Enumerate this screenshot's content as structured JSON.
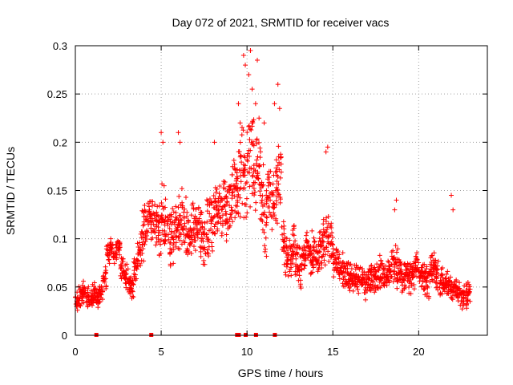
{
  "chart_data": {
    "type": "scatter",
    "title": "Day 072 of 2021, SRMTID for receiver vacs",
    "xlabel": "GPS time / hours",
    "ylabel": "SRMTID / TECUs",
    "xlim": [
      0,
      24
    ],
    "ylim": [
      0,
      0.3
    ],
    "x_ticks": [
      0,
      5,
      10,
      15,
      20
    ],
    "y_ticks": [
      0,
      0.05,
      0.1,
      0.15,
      0.2,
      0.25,
      0.3
    ],
    "x_tick_labels": [
      "0",
      "5",
      "10",
      "15",
      "20"
    ],
    "y_tick_labels": [
      "0",
      "0.05",
      "0.1",
      "0.15",
      "0.2",
      "0.25",
      "0.3"
    ],
    "grid": true,
    "marker": "+",
    "color": "#ff0000",
    "series": [
      {
        "name": "SRMTID",
        "x": [
          0.0,
          0.2,
          0.4,
          0.6,
          0.8,
          1.0,
          1.2,
          1.4,
          1.6,
          1.8,
          2.0,
          2.2,
          2.4,
          2.6,
          2.8,
          3.0,
          3.2,
          3.4,
          3.6,
          3.8,
          4.0,
          4.2,
          4.4,
          4.6,
          4.8,
          5.0,
          5.2,
          5.4,
          5.6,
          5.8,
          6.0,
          6.2,
          6.4,
          6.6,
          6.8,
          7.0,
          7.2,
          7.4,
          7.6,
          7.8,
          8.0,
          8.2,
          8.4,
          8.6,
          8.8,
          9.0,
          9.2,
          9.4,
          9.6,
          9.8,
          10.0,
          10.2,
          10.4,
          10.6,
          10.8,
          11.0,
          11.2,
          11.4,
          11.6,
          11.8,
          12.0,
          12.2,
          12.4,
          12.6,
          12.8,
          13.0,
          13.2,
          13.4,
          13.6,
          13.8,
          14.0,
          14.2,
          14.4,
          14.6,
          14.8,
          15.0,
          15.2,
          15.4,
          15.6,
          15.8,
          16.0,
          16.2,
          16.4,
          16.6,
          16.8,
          17.0,
          17.2,
          17.4,
          17.6,
          17.8,
          18.0,
          18.2,
          18.4,
          18.6,
          18.8,
          19.0,
          19.2,
          19.4,
          19.6,
          19.8,
          20.0,
          20.2,
          20.4,
          20.6,
          20.8,
          21.0,
          21.2,
          21.4,
          21.6,
          21.8,
          22.0,
          22.2,
          22.4,
          22.6,
          22.8
        ],
        "y": [
          0.035,
          0.04,
          0.045,
          0.04,
          0.035,
          0.045,
          0.04,
          0.045,
          0.06,
          0.085,
          0.09,
          0.085,
          0.09,
          0.07,
          0.06,
          0.055,
          0.05,
          0.07,
          0.085,
          0.1,
          0.12,
          0.13,
          0.12,
          0.115,
          0.11,
          0.12,
          0.115,
          0.1,
          0.105,
          0.11,
          0.12,
          0.12,
          0.11,
          0.1,
          0.11,
          0.115,
          0.11,
          0.1,
          0.11,
          0.12,
          0.13,
          0.125,
          0.13,
          0.14,
          0.13,
          0.14,
          0.15,
          0.16,
          0.17,
          0.16,
          0.18,
          0.19,
          0.17,
          0.16,
          0.14,
          0.12,
          0.15,
          0.14,
          0.15,
          0.17,
          0.1,
          0.08,
          0.08,
          0.09,
          0.075,
          0.07,
          0.08,
          0.09,
          0.085,
          0.08,
          0.08,
          0.09,
          0.1,
          0.1,
          0.095,
          0.08,
          0.075,
          0.07,
          0.065,
          0.06,
          0.06,
          0.06,
          0.055,
          0.06,
          0.055,
          0.06,
          0.06,
          0.06,
          0.065,
          0.065,
          0.06,
          0.065,
          0.07,
          0.07,
          0.065,
          0.06,
          0.065,
          0.06,
          0.065,
          0.07,
          0.065,
          0.06,
          0.055,
          0.065,
          0.07,
          0.06,
          0.055,
          0.05,
          0.055,
          0.05,
          0.05,
          0.045,
          0.04,
          0.04,
          0.045
        ],
        "spread": [
          0.012,
          0.012,
          0.012,
          0.012,
          0.012,
          0.012,
          0.012,
          0.012,
          0.015,
          0.015,
          0.012,
          0.012,
          0.012,
          0.015,
          0.015,
          0.015,
          0.015,
          0.02,
          0.025,
          0.03,
          0.03,
          0.03,
          0.03,
          0.03,
          0.035,
          0.04,
          0.035,
          0.035,
          0.035,
          0.035,
          0.035,
          0.035,
          0.035,
          0.035,
          0.035,
          0.035,
          0.035,
          0.035,
          0.035,
          0.035,
          0.035,
          0.035,
          0.035,
          0.035,
          0.04,
          0.04,
          0.045,
          0.045,
          0.05,
          0.05,
          0.055,
          0.055,
          0.05,
          0.05,
          0.05,
          0.045,
          0.045,
          0.04,
          0.045,
          0.05,
          0.03,
          0.025,
          0.025,
          0.025,
          0.025,
          0.025,
          0.025,
          0.025,
          0.025,
          0.025,
          0.025,
          0.025,
          0.03,
          0.03,
          0.025,
          0.025,
          0.02,
          0.02,
          0.02,
          0.02,
          0.02,
          0.02,
          0.02,
          0.02,
          0.02,
          0.02,
          0.02,
          0.02,
          0.02,
          0.02,
          0.02,
          0.02,
          0.025,
          0.025,
          0.02,
          0.02,
          0.02,
          0.02,
          0.02,
          0.02,
          0.02,
          0.02,
          0.02,
          0.02,
          0.02,
          0.02,
          0.02,
          0.02,
          0.02,
          0.015,
          0.015,
          0.015,
          0.015,
          0.015,
          0.015
        ]
      }
    ],
    "outliers": {
      "x": [
        9.8,
        9.9,
        10.1,
        10.2,
        10.3,
        10.5,
        10.6,
        10.7,
        11.0,
        11.6,
        11.8,
        11.9,
        14.6,
        14.7,
        18.6,
        18.7,
        21.9,
        22.0,
        9.5,
        9.6,
        6.0,
        6.1,
        8.1,
        5.0,
        5.1
      ],
      "y": [
        0.29,
        0.28,
        0.27,
        0.295,
        0.255,
        0.24,
        0.285,
        0.225,
        0.22,
        0.24,
        0.26,
        0.235,
        0.19,
        0.195,
        0.13,
        0.14,
        0.145,
        0.13,
        0.24,
        0.22,
        0.21,
        0.2,
        0.2,
        0.21,
        0.2
      ]
    },
    "zero_markers_x": [
      1.2,
      4.4,
      9.4,
      9.5,
      9.9,
      10.5,
      11.6
    ]
  }
}
